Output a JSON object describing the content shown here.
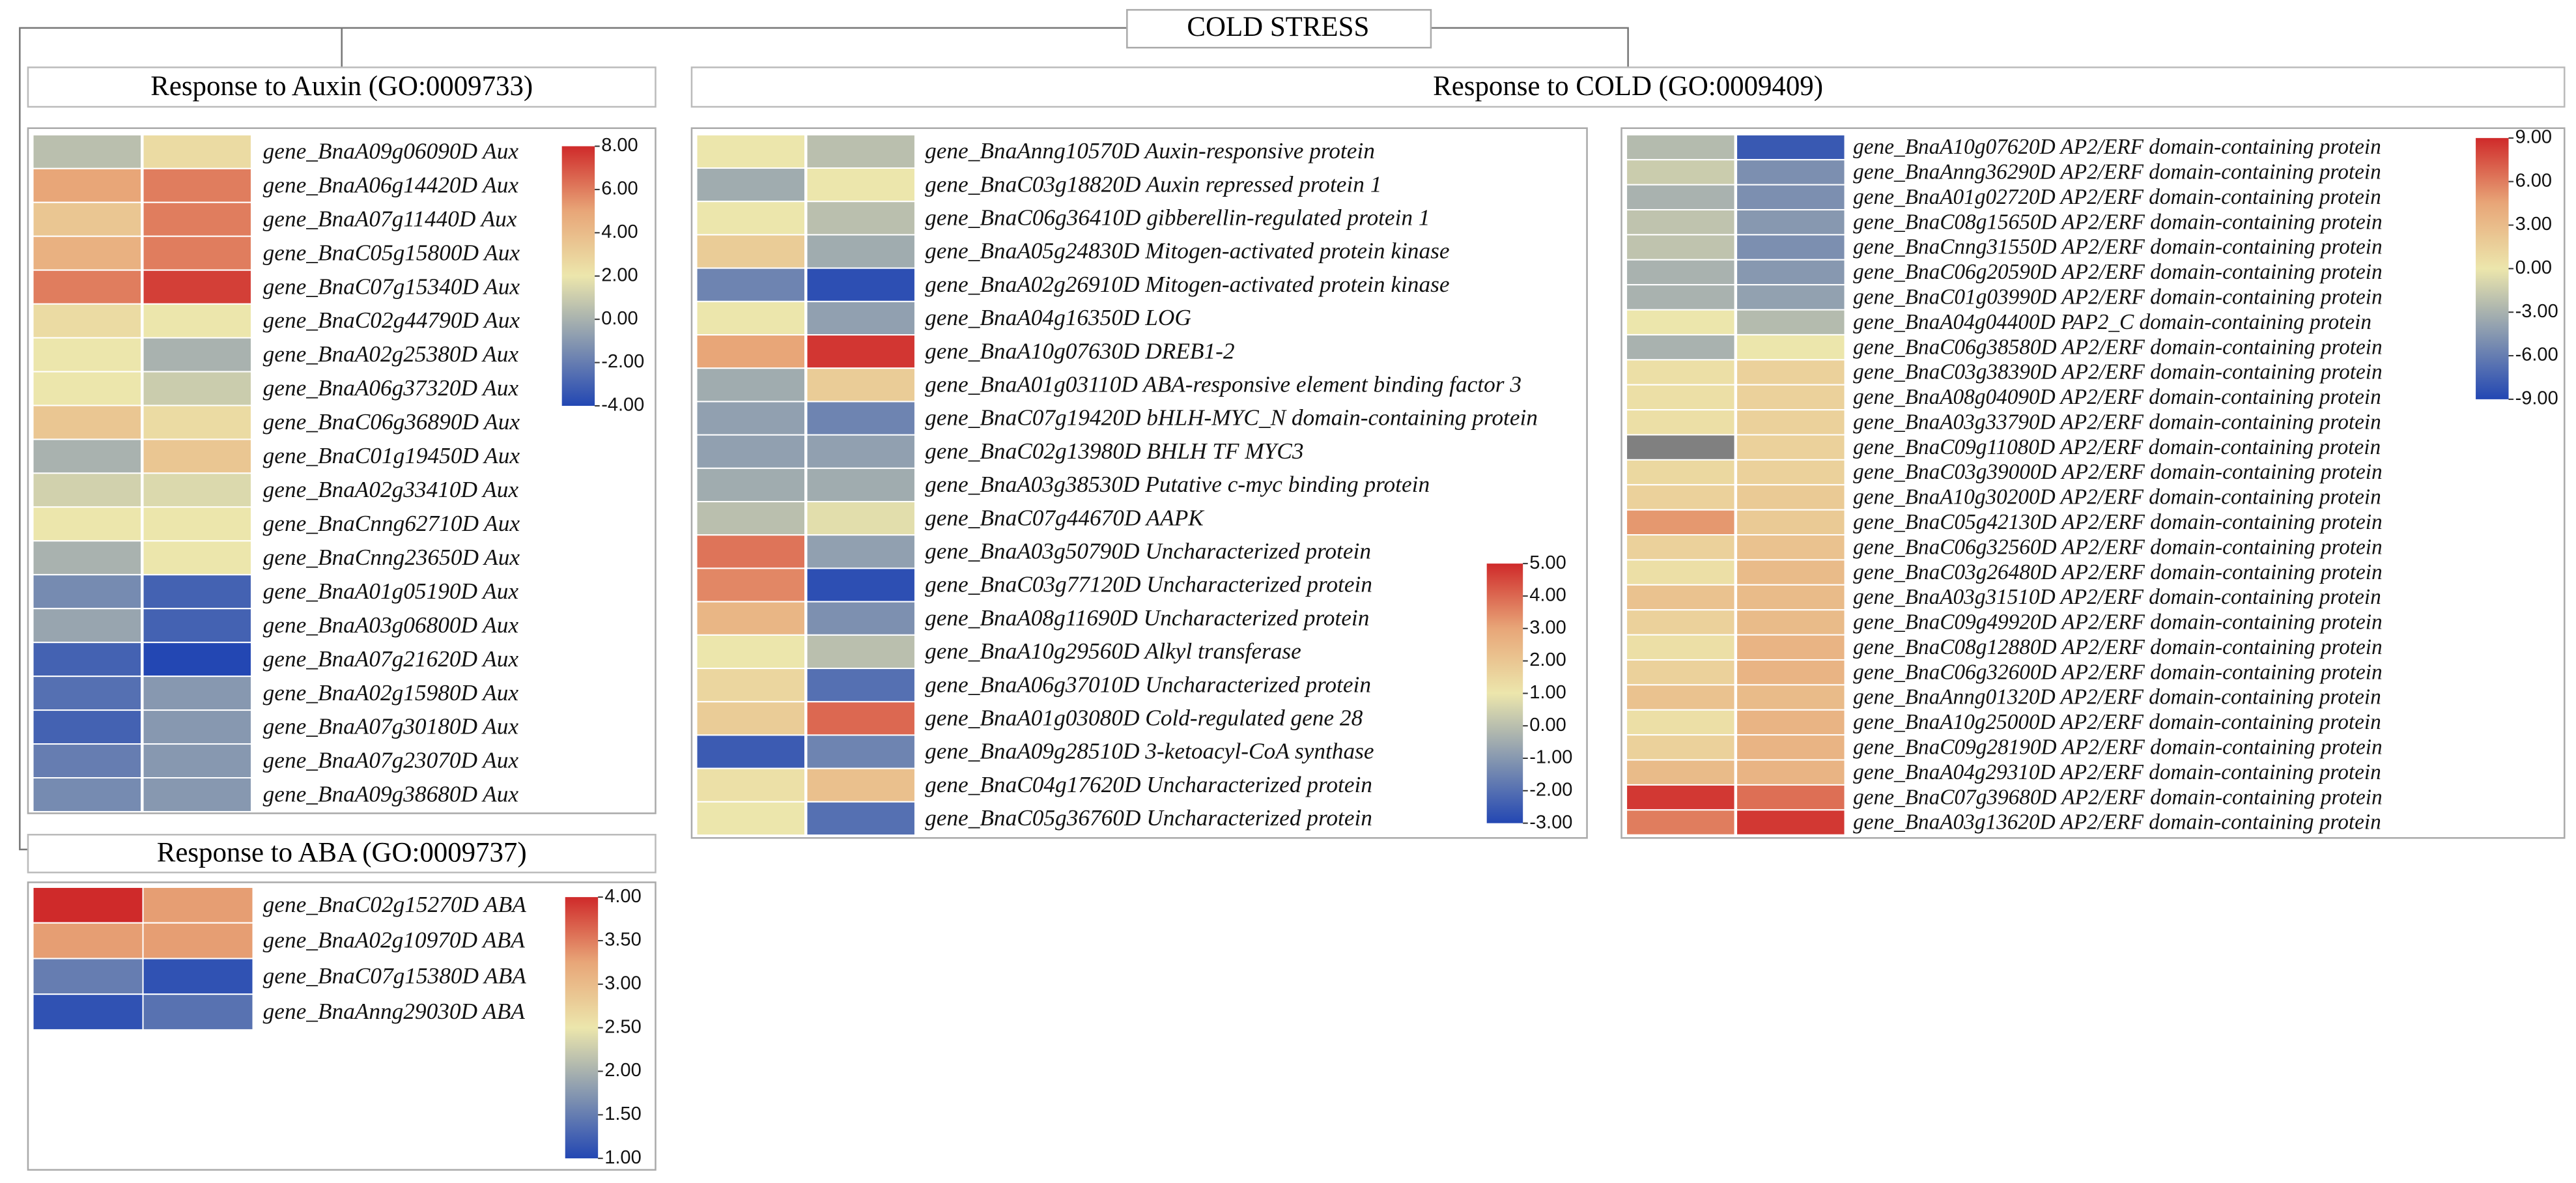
{
  "title": "COLD STRESS",
  "chart_data": [
    {
      "type": "heatmap",
      "title": "Response to Auxin (GO:0009733)",
      "rows": [
        "gene_BnaA09g06090D Aux",
        "gene_BnaA06g14420D Aux",
        "gene_BnaA07g11440D Aux",
        "gene_BnaC05g15800D Aux",
        "gene_BnaC07g15340D Aux",
        "gene_BnaC02g44790D Aux",
        "gene_BnaA02g25380D Aux",
        "gene_BnaA06g37320D Aux",
        "gene_BnaC06g36890D Aux",
        "gene_BnaC01g19450D Aux",
        "gene_BnaA02g33410D Aux",
        "gene_BnaCnng62710D Aux",
        "gene_BnaCnng23650D Aux",
        "gene_BnaA01g05190D Aux",
        "gene_BnaA03g06800D Aux",
        "gene_BnaA07g21620D Aux",
        "gene_BnaA02g15980D Aux",
        "gene_BnaA07g30180D Aux",
        "gene_BnaA07g23070D Aux",
        "gene_BnaA09g38680D Aux"
      ],
      "values": [
        [
          0.5,
          2.5
        ],
        [
          5,
          6
        ],
        [
          3.5,
          6
        ],
        [
          4.5,
          6
        ],
        [
          6,
          7.5
        ],
        [
          2.5,
          2
        ],
        [
          2,
          0
        ],
        [
          2,
          1
        ],
        [
          3.5,
          2.5
        ],
        [
          0,
          3.5
        ],
        [
          1.2,
          1.5
        ],
        [
          2,
          2
        ],
        [
          0,
          2
        ],
        [
          -1.5,
          -3
        ],
        [
          -0.5,
          -3
        ],
        [
          -3,
          -4
        ],
        [
          -2.5,
          -1
        ],
        [
          -3,
          -1
        ],
        [
          -2,
          -1
        ],
        [
          -1.5,
          -1
        ]
      ],
      "colormap": [
        "#2347b3",
        "#8798b0",
        "#ece6ac",
        "#e8a678",
        "#cf2a2a"
      ],
      "clim": [
        -4,
        8
      ],
      "cticks": [
        {
          "value": 8,
          "label": "8.00"
        },
        {
          "value": 6,
          "label": "6.00"
        },
        {
          "value": 4,
          "label": "4.00"
        },
        {
          "value": 2,
          "label": "2.00"
        },
        {
          "value": 0,
          "label": "0.00"
        },
        {
          "value": -2,
          "label": "-2.00"
        },
        {
          "value": -4,
          "label": "-4.00"
        }
      ]
    },
    {
      "type": "heatmap",
      "title": "Response to ABA (GO:0009737)",
      "rows": [
        "gene_BnaC02g15270D ABA",
        "gene_BnaA02g10970D ABA",
        "gene_BnaC07g15380D ABA",
        "gene_BnaAnng29030D ABA"
      ],
      "values": [
        [
          4,
          3.3
        ],
        [
          3.3,
          3.3
        ],
        [
          1.5,
          1.1
        ],
        [
          1.1,
          1.4
        ]
      ],
      "colormap": [
        "#2347b3",
        "#8798b0",
        "#ece6ac",
        "#e8a678",
        "#cf2a2a"
      ],
      "clim": [
        1,
        4
      ],
      "cticks": [
        {
          "value": 4,
          "label": "4.00"
        },
        {
          "value": 3.5,
          "label": "3.50"
        },
        {
          "value": 3,
          "label": "3.00"
        },
        {
          "value": 2.5,
          "label": "2.50"
        },
        {
          "value": 2,
          "label": "2.00"
        },
        {
          "value": 1.5,
          "label": "1.50"
        },
        {
          "value": 1,
          "label": "1.00"
        }
      ]
    },
    {
      "type": "heatmap",
      "title": "Response to COLD (GO:0009409)",
      "rows": [
        "gene_BnaAnng10570D Auxin-responsive protein",
        "gene_BnaC03g18820D Auxin repressed protein 1",
        "gene_BnaC06g36410D gibberellin-regulated protein 1",
        "gene_BnaA05g24830D Mitogen-activated protein kinase",
        "gene_BnaA02g26910D Mitogen-activated protein kinase",
        "gene_BnaA04g16350D LOG",
        "gene_BnaA10g07630D DREB1-2",
        "gene_BnaA01g03110D ABA-responsive element binding factor 3",
        "gene_BnaC07g19420D bHLH-MYC_N domain-containing protein",
        "gene_BnaC02g13980D BHLH TF MYC3",
        "gene_BnaA03g38530D Putative c-myc binding protein",
        "gene_BnaC07g44670D AAPK",
        "gene_BnaA03g50790D Uncharacterized protein",
        "gene_BnaC03g77120D Uncharacterized protein",
        "gene_BnaA08g11690D Uncharacterized protein",
        "gene_BnaA10g29560D Alkyl transferase",
        "gene_BnaA06g37010D Uncharacterized protein",
        "gene_BnaA01g03080D Cold-regulated gene 28",
        "gene_BnaA09g28510D 3-ketoacyl-CoA synthase",
        "gene_BnaC04g17620D Uncharacterized protein",
        "gene_BnaC05g36760D Uncharacterized protein"
      ],
      "values": [
        [
          1,
          0
        ],
        [
          -0.5,
          1
        ],
        [
          1,
          0
        ],
        [
          1.8,
          -0.5
        ],
        [
          -1.5,
          -2.8
        ],
        [
          1,
          -0.8
        ],
        [
          3,
          4.8
        ],
        [
          -0.5,
          1.8
        ],
        [
          -0.8,
          -1.5
        ],
        [
          -0.8,
          -0.8
        ],
        [
          -0.5,
          -0.5
        ],
        [
          0,
          0.8
        ],
        [
          3.8,
          -0.8
        ],
        [
          3.5,
          -2.8
        ],
        [
          2.5,
          -1.2
        ],
        [
          1,
          0
        ],
        [
          1.5,
          -2
        ],
        [
          1.8,
          4
        ],
        [
          -2.5,
          -1.5
        ],
        [
          1.2,
          2.2
        ],
        [
          1,
          -2
        ]
      ],
      "colormap": [
        "#2347b3",
        "#8798b0",
        "#ece6ac",
        "#e8a678",
        "#cf2a2a"
      ],
      "clim": [
        -3,
        5
      ],
      "cticks": [
        {
          "value": 5,
          "label": "5.00"
        },
        {
          "value": 4,
          "label": "4.00"
        },
        {
          "value": 3,
          "label": "3.00"
        },
        {
          "value": 2,
          "label": "2.00"
        },
        {
          "value": 1,
          "label": "1.00"
        },
        {
          "value": 0,
          "label": "0.00"
        },
        {
          "value": -1,
          "label": "-1.00"
        },
        {
          "value": -2,
          "label": "-2.00"
        },
        {
          "value": -3,
          "label": "-3.00"
        }
      ]
    },
    {
      "type": "heatmap",
      "rows": [
        "gene_BnaA10g07620D AP2/ERF domain-containing protein",
        "gene_BnaAnng36290D AP2/ERF domain-containing protein",
        "gene_BnaA01g02720D AP2/ERF domain-containing protein",
        "gene_BnaC08g15650D AP2/ERF domain-containing protein",
        "gene_BnaCnng31550D AP2/ERF domain-containing protein",
        "gene_BnaC06g20590D AP2/ERF domain-containing protein",
        "gene_BnaC01g03990D AP2/ERF domain-containing protein",
        "gene_BnaA04g04400D PAP2_C domain-containing protein",
        "gene_BnaC06g38580D AP2/ERF domain-containing protein",
        "gene_BnaC03g38390D AP2/ERF domain-containing protein",
        "gene_BnaA08g04090D AP2/ERF domain-containing protein",
        "gene_BnaA03g33790D AP2/ERF domain-containing protein",
        "gene_BnaC09g11080D AP2/ERF domain-containing protein",
        "gene_BnaC03g39000D AP2/ERF domain-containing protein",
        "gene_BnaA10g30200D AP2/ERF domain-containing protein",
        "gene_BnaC05g42130D AP2/ERF domain-containing protein",
        "gene_BnaC06g32560D AP2/ERF domain-containing protein",
        "gene_BnaC03g26480D AP2/ERF domain-containing protein",
        "gene_BnaA03g31510D AP2/ERF domain-containing protein",
        "gene_BnaC09g49920D AP2/ERF domain-containing protein",
        "gene_BnaC08g12880D AP2/ERF domain-containing protein",
        "gene_BnaC06g32600D AP2/ERF domain-containing protein",
        "gene_BnaAnng01320D AP2/ERF domain-containing protein",
        "gene_BnaA10g25000D AP2/ERF domain-containing protein",
        "gene_BnaC09g28190D AP2/ERF domain-containing protein",
        "gene_BnaA04g29310D AP2/ERF domain-containing protein",
        "gene_BnaC07g39680D AP2/ERF domain-containing protein",
        "gene_BnaA03g13620D AP2/ERF domain-containing protein"
      ],
      "values": [
        [
          -2.5,
          -8
        ],
        [
          -1.5,
          -5
        ],
        [
          -3,
          -5
        ],
        [
          -2,
          -4.5
        ],
        [
          -2,
          -5
        ],
        [
          -3,
          -4.5
        ],
        [
          -3,
          -4
        ],
        [
          0,
          -2.5
        ],
        [
          -3,
          0
        ],
        [
          0.5,
          1.5
        ],
        [
          0.5,
          1.5
        ],
        [
          0.5,
          1.5
        ],
        [
          null,
          1.5
        ],
        [
          1,
          1.5
        ],
        [
          1.5,
          2
        ],
        [
          5,
          2
        ],
        [
          1.5,
          2.5
        ],
        [
          0.5,
          3
        ],
        [
          2.5,
          3
        ],
        [
          1.5,
          3
        ],
        [
          0.5,
          3.5
        ],
        [
          1.5,
          3.5
        ],
        [
          2.5,
          3
        ],
        [
          0.5,
          3.5
        ],
        [
          1.5,
          3.5
        ],
        [
          3,
          3.5
        ],
        [
          8.5,
          6.5
        ],
        [
          6,
          8.5
        ]
      ],
      "colormap": [
        "#2347b3",
        "#8798b0",
        "#ece6ac",
        "#e8a678",
        "#cf2a2a"
      ],
      "na_color": "#808080",
      "clim": [
        -9,
        9
      ],
      "cticks": [
        {
          "value": 9,
          "label": "9.00"
        },
        {
          "value": 6,
          "label": "6.00"
        },
        {
          "value": 3,
          "label": "3.00"
        },
        {
          "value": 0,
          "label": "0.00"
        },
        {
          "value": -3,
          "label": "-3.00"
        },
        {
          "value": -6,
          "label": "-6.00"
        },
        {
          "value": -9,
          "label": "-9.00"
        }
      ]
    }
  ]
}
